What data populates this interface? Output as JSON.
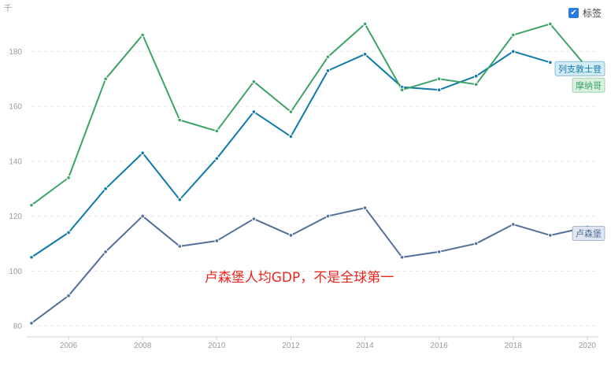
{
  "legend": {
    "label": "标签",
    "checked": true,
    "check_glyph": "✔"
  },
  "chart_data": {
    "type": "line",
    "unit": "千",
    "annotation": "卢森堡人均GDP，不是全球第一",
    "x": [
      2005,
      2006,
      2007,
      2008,
      2009,
      2010,
      2011,
      2012,
      2013,
      2014,
      2015,
      2016,
      2017,
      2018,
      2019,
      2020
    ],
    "xticks": [
      "2006",
      "2008",
      "2010",
      "2012",
      "2014",
      "2016",
      "2018",
      "2020"
    ],
    "yticks": [
      "80",
      "100",
      "120",
      "140",
      "160",
      "180"
    ],
    "xlim": [
      2005,
      2020.3
    ],
    "ylim": [
      76,
      193
    ],
    "grid": "horizontal-dashed",
    "series": [
      {
        "name": "列支敦士登",
        "color": "#0f7aa8",
        "tag_bg": "#d3ecf6",
        "values": [
          105,
          114,
          130,
          143,
          126,
          141,
          158,
          149,
          173,
          179,
          167,
          166,
          171,
          180,
          176,
          null
        ]
      },
      {
        "name": "摩纳哥",
        "color": "#3ea366",
        "tag_bg": "#daf1e2",
        "values": [
          124,
          134,
          170,
          186,
          155,
          151,
          169,
          158,
          178,
          190,
          166,
          170,
          168,
          186,
          190,
          174
        ]
      },
      {
        "name": "卢森堡",
        "color": "#54709a",
        "tag_bg": "#dfe5f1",
        "values": [
          81,
          91,
          107,
          120,
          109,
          111,
          119,
          113,
          120,
          123,
          105,
          107,
          110,
          117,
          113,
          116
        ]
      }
    ]
  }
}
